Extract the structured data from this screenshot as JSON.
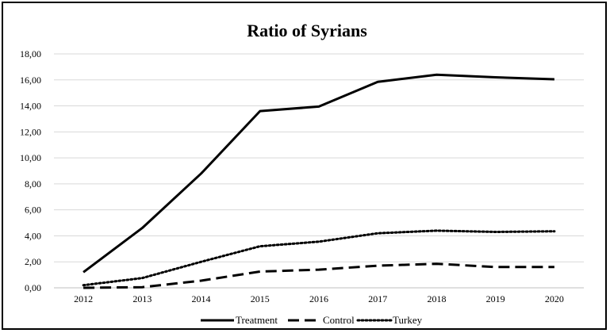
{
  "chart_data": {
    "type": "line",
    "title": "Ratio of Syrians",
    "xlabel": "",
    "ylabel": "",
    "categories": [
      "2012",
      "2013",
      "2014",
      "2015",
      "2016",
      "2017",
      "2018",
      "2019",
      "2020"
    ],
    "y_tick_labels": [
      "0,00",
      "2,00",
      "4,00",
      "6,00",
      "8,00",
      "10,00",
      "12,00",
      "14,00",
      "16,00",
      "18,00"
    ],
    "ylim": [
      0,
      18
    ],
    "grid": true,
    "legend_position": "bottom",
    "series": [
      {
        "name": "Treatment",
        "style": "solid",
        "color": "#000000",
        "values": [
          1.2,
          4.6,
          8.8,
          13.6,
          13.95,
          15.85,
          16.4,
          16.2,
          16.05
        ]
      },
      {
        "name": "Control",
        "style": "dashed",
        "color": "#000000",
        "values": [
          0.0,
          0.05,
          0.55,
          1.25,
          1.4,
          1.7,
          1.85,
          1.6,
          1.6
        ]
      },
      {
        "name": "Turkey",
        "style": "dotted",
        "color": "#000000",
        "values": [
          0.2,
          0.75,
          2.0,
          3.2,
          3.55,
          4.2,
          4.4,
          4.3,
          4.35
        ]
      }
    ]
  }
}
